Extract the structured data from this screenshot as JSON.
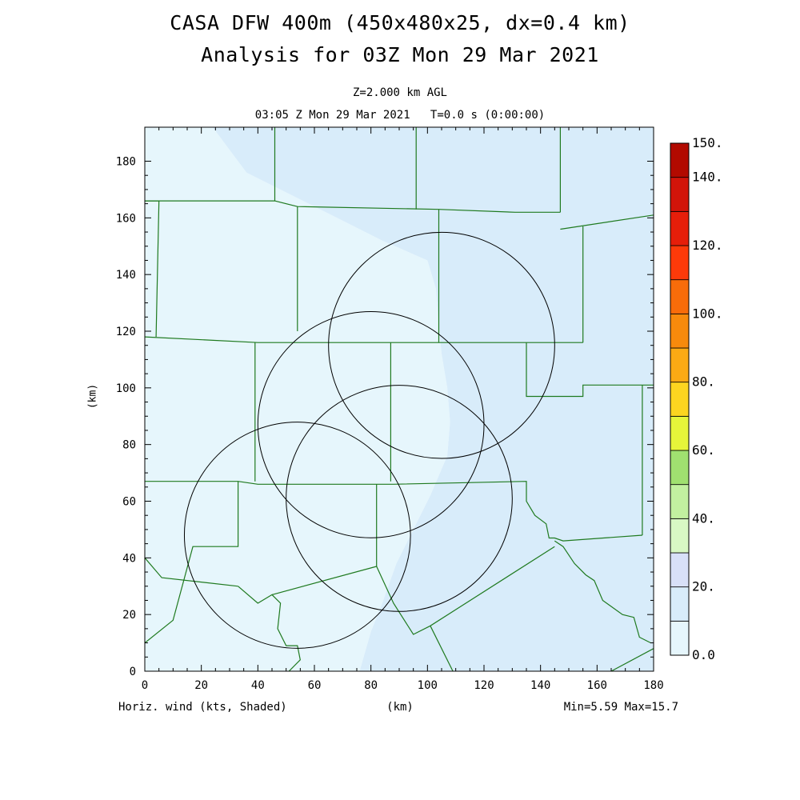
{
  "header": {
    "title_line1": "CASA DFW 400m (450x480x25, dx=0.4 km)",
    "title_line2": "Analysis for 03Z Mon 29 Mar 2021",
    "level": "Z=2.000 km AGL",
    "time": "03:05 Z Mon 29 Mar 2021   T=0.0 s (0:00:00)"
  },
  "footer": {
    "field_label": "Horiz. wind (kts, Shaded)",
    "x_unit": "(km)",
    "minmax": "Min=5.59 Max=15.7"
  },
  "chart_data": {
    "type": "heatmap",
    "field": "Horizontal wind speed at Z=2.000 km AGL",
    "units": "kts",
    "min": 5.59,
    "max": 15.7,
    "xlabel": "(km)",
    "ylabel": "(km)",
    "xlim": [
      0,
      180
    ],
    "ylim": [
      0,
      192
    ],
    "xticks": [
      0,
      20,
      40,
      60,
      80,
      100,
      120,
      140,
      160,
      180
    ],
    "yticks": [
      0,
      20,
      40,
      60,
      80,
      100,
      120,
      140,
      160,
      180
    ],
    "regions": [
      {
        "range_kts": "0-10",
        "color": "#e6f6fc",
        "polygon_km": [
          [
            0,
            0
          ],
          [
            0,
            192
          ],
          [
            24,
            192
          ],
          [
            36,
            176
          ],
          [
            52,
            168
          ],
          [
            68,
            160
          ],
          [
            84,
            152
          ],
          [
            100,
            145
          ],
          [
            103,
            135
          ],
          [
            104,
            122
          ],
          [
            105,
            112
          ],
          [
            107,
            100
          ],
          [
            108,
            88
          ],
          [
            107,
            76
          ],
          [
            101,
            62
          ],
          [
            95,
            50
          ],
          [
            89,
            38
          ],
          [
            84,
            24
          ],
          [
            80,
            14
          ],
          [
            76,
            0
          ]
        ]
      },
      {
        "range_kts": "10-20",
        "color": "#d8ecfa",
        "polygon_km": [
          [
            24,
            192
          ],
          [
            180,
            192
          ],
          [
            180,
            0
          ],
          [
            76,
            0
          ],
          [
            80,
            14
          ],
          [
            84,
            24
          ],
          [
            89,
            38
          ],
          [
            95,
            50
          ],
          [
            101,
            62
          ],
          [
            107,
            76
          ],
          [
            108,
            88
          ],
          [
            107,
            100
          ],
          [
            105,
            112
          ],
          [
            104,
            122
          ],
          [
            103,
            135
          ],
          [
            100,
            145
          ],
          [
            84,
            152
          ],
          [
            68,
            160
          ],
          [
            52,
            168
          ],
          [
            36,
            176
          ]
        ]
      }
    ],
    "radar_range_rings_km": [
      {
        "center": [
          54,
          48
        ],
        "radius": 40
      },
      {
        "center": [
          80,
          87
        ],
        "radius": 40
      },
      {
        "center": [
          105,
          115
        ],
        "radius": 40
      },
      {
        "center": [
          90,
          61
        ],
        "radius": 40
      }
    ],
    "county_boundaries_km": [
      [
        [
          0,
          166
        ],
        [
          46,
          166
        ],
        [
          54,
          164
        ],
        [
          104,
          163
        ],
        [
          131,
          162
        ],
        [
          147,
          162
        ]
      ],
      [
        [
          46,
          166
        ],
        [
          46,
          192
        ]
      ],
      [
        [
          96,
          163
        ],
        [
          96,
          192
        ]
      ],
      [
        [
          147,
          162
        ],
        [
          147,
          192
        ]
      ],
      [
        [
          147,
          156
        ],
        [
          180,
          161
        ]
      ],
      [
        [
          0,
          166
        ],
        [
          5,
          166
        ],
        [
          4,
          118
        ]
      ],
      [
        [
          54,
          164
        ],
        [
          54,
          120
        ]
      ],
      [
        [
          104,
          163
        ],
        [
          104,
          116
        ]
      ],
      [
        [
          155,
          157
        ],
        [
          155,
          116
        ]
      ],
      [
        [
          0,
          118
        ],
        [
          40,
          116
        ],
        [
          88,
          116
        ],
        [
          132,
          116
        ],
        [
          155,
          116
        ]
      ],
      [
        [
          39,
          116
        ],
        [
          39,
          67
        ]
      ],
      [
        [
          87,
          116
        ],
        [
          87,
          67
        ]
      ],
      [
        [
          135,
          116
        ],
        [
          135,
          97
        ],
        [
          155,
          97
        ],
        [
          155,
          101
        ],
        [
          180,
          101
        ]
      ],
      [
        [
          176,
          101
        ],
        [
          176,
          48
        ]
      ],
      [
        [
          0,
          67
        ],
        [
          33,
          67
        ],
        [
          40,
          66
        ],
        [
          88,
          66
        ],
        [
          135,
          67
        ],
        [
          135,
          60
        ],
        [
          138,
          55
        ],
        [
          142,
          52
        ],
        [
          143,
          47
        ],
        [
          145,
          47
        ],
        [
          148,
          46
        ],
        [
          176,
          48
        ]
      ],
      [
        [
          82,
          66
        ],
        [
          82,
          37
        ]
      ],
      [
        [
          33,
          67
        ],
        [
          33,
          44
        ],
        [
          17,
          44
        ],
        [
          10,
          18
        ],
        [
          0,
          10
        ]
      ],
      [
        [
          33,
          30
        ],
        [
          40,
          24
        ],
        [
          45,
          27
        ],
        [
          48,
          24
        ],
        [
          47,
          15
        ],
        [
          50,
          9
        ],
        [
          54,
          9
        ],
        [
          55,
          4
        ],
        [
          51,
          0
        ]
      ],
      [
        [
          0,
          40
        ],
        [
          6,
          33
        ],
        [
          33,
          30
        ]
      ],
      [
        [
          45,
          27
        ],
        [
          82,
          37
        ],
        [
          88,
          24
        ],
        [
          95,
          13
        ],
        [
          101,
          16
        ],
        [
          145,
          44
        ]
      ],
      [
        [
          101,
          16
        ],
        [
          109,
          0
        ]
      ],
      [
        [
          145,
          46
        ],
        [
          148,
          44
        ],
        [
          152,
          38
        ],
        [
          156,
          34
        ],
        [
          159,
          32
        ],
        [
          162,
          25
        ],
        [
          169,
          20
        ],
        [
          173,
          19
        ],
        [
          175,
          12
        ],
        [
          179,
          10
        ]
      ],
      [
        [
          165,
          0
        ],
        [
          180,
          8
        ]
      ]
    ]
  },
  "colorbar": {
    "labels": [
      "0.0",
      "20.",
      "40.",
      "60.",
      "80.",
      "100.",
      "120.",
      "140.",
      "150."
    ],
    "colors": [
      "#e6f6fc",
      "#d8ecfa",
      "#d8e0f8",
      "#d8f8c4",
      "#c2f0a0",
      "#a0e070",
      "#e6f53a",
      "#fcd520",
      "#fbaa14",
      "#f78a0c",
      "#f86c0a",
      "#fd3a0a",
      "#e61e0a",
      "#d2140a",
      "#b20a00"
    ]
  }
}
